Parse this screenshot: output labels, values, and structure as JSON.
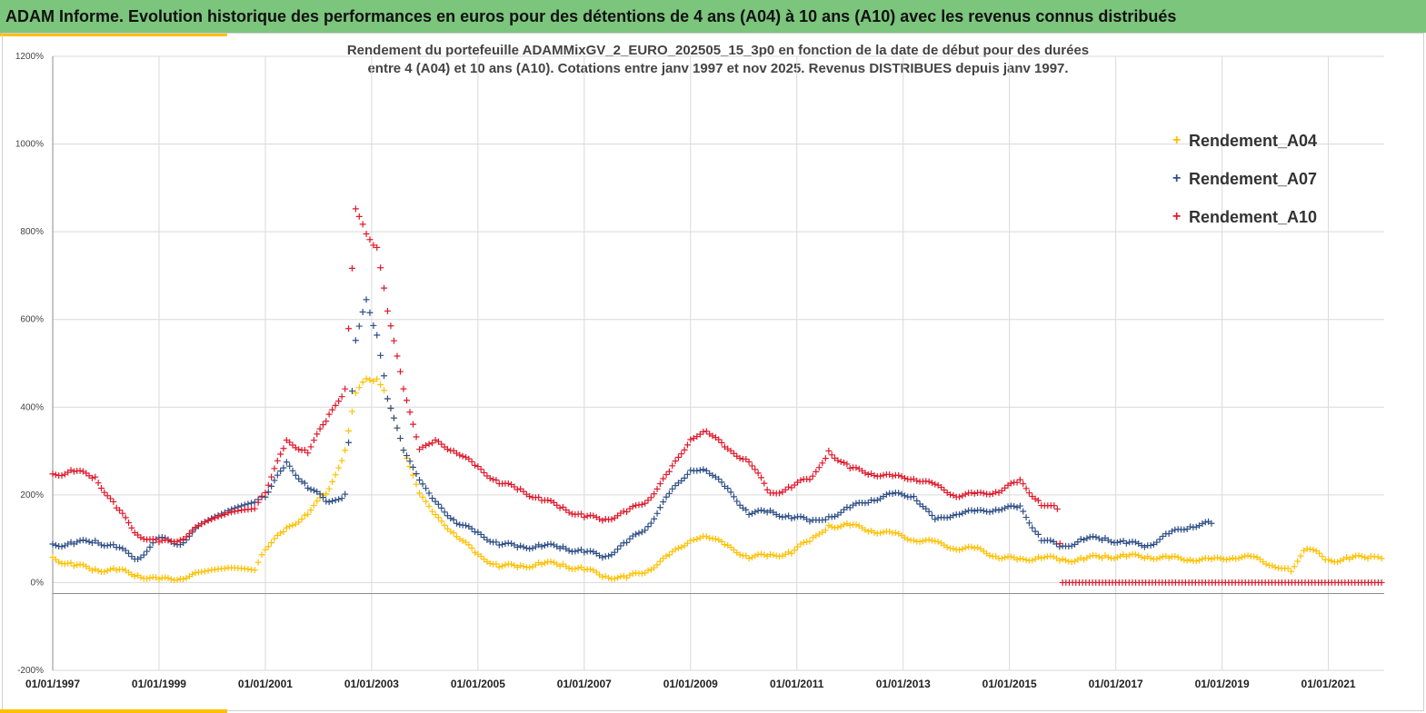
{
  "header": {
    "title": "ADAM Informe. Evolution historique des performances en euros pour des détentions de 4 ans (A04) à 10 ans (A10) avec les revenus connus distribués"
  },
  "colors": {
    "banner": "#7cc57d",
    "accent": "#ffc000",
    "A04": "#ffc000",
    "A07": "#2f4f86",
    "A10": "#e0182a"
  },
  "chart_data": {
    "type": "scatter",
    "title_line1": "Rendement du portefeuille ADAMMixGV_2_EURO_202505_15_3p0 en fonction de la date de début pour des durées",
    "title_line2": "entre 4 (A04) et 10 ans (A10). Cotations entre janv 1997 et nov 2025. Revenus DISTRIBUES depuis janv 1997.",
    "xlabel": "",
    "ylabel": "",
    "xlim": [
      1997.0,
      2022.05
    ],
    "ylim": [
      -200,
      1200
    ],
    "marker": "+",
    "y_ticks": [
      "1200%",
      "1000%",
      "800%",
      "600%",
      "400%",
      "200%",
      "0%",
      "-200%"
    ],
    "y_tick_values": [
      1200,
      1000,
      800,
      600,
      400,
      200,
      0,
      -200
    ],
    "x_ticks": [
      "01/01/1997",
      "01/01/1999",
      "01/01/2001",
      "01/01/2003",
      "01/01/2005",
      "01/01/2007",
      "01/01/2009",
      "01/01/2011",
      "01/01/2013",
      "01/01/2015",
      "01/01/2017",
      "01/01/2019",
      "01/01/2021"
    ],
    "x_tick_values": [
      1997,
      1999,
      2001,
      2003,
      2005,
      2007,
      2009,
      2011,
      2013,
      2015,
      2017,
      2019,
      2021
    ],
    "legend": [
      "Rendement_A04",
      "Rendement_A07",
      "Rendement_A10"
    ],
    "legend_position": "top-right",
    "series": [
      {
        "name": "Rendement_A04",
        "color": "#ffc000",
        "x": [
          1997.0,
          1997.4,
          1997.8,
          1998.2,
          1998.6,
          1999.0,
          1999.4,
          1999.8,
          2000.3,
          2000.8,
          2001.0,
          2001.4,
          2001.8,
          2002.2,
          2002.5,
          2002.7,
          2002.9,
          2003.1,
          2003.3,
          2003.6,
          2003.9,
          2004.2,
          2004.6,
          2005.0,
          2005.4,
          2005.8,
          2006.2,
          2006.6,
          2007.0,
          2007.4,
          2007.8,
          2008.2,
          2008.6,
          2009.0,
          2009.3,
          2009.7,
          2010.1,
          2010.5,
          2010.9,
          2011.3,
          2011.6,
          2012.0,
          2012.4,
          2012.8,
          2013.2,
          2013.6,
          2014.0,
          2014.4,
          2014.8,
          2015.2,
          2015.6,
          2016.0,
          2016.4,
          2016.8,
          2017.2,
          2017.6,
          2018.0,
          2018.4,
          2018.8,
          2019.2,
          2019.6,
          2020.0,
          2020.3,
          2020.6,
          2021.0,
          2021.4,
          2021.8,
          2022.0
        ],
        "y": [
          55,
          40,
          30,
          28,
          18,
          5,
          12,
          20,
          30,
          25,
          80,
          120,
          160,
          210,
          300,
          430,
          470,
          460,
          420,
          300,
          200,
          150,
          110,
          60,
          40,
          35,
          45,
          40,
          30,
          15,
          10,
          30,
          60,
          100,
          110,
          80,
          60,
          60,
          70,
          100,
          130,
          130,
          120,
          110,
          100,
          90,
          80,
          75,
          60,
          50,
          60,
          50,
          55,
          60,
          60,
          60,
          55,
          55,
          50,
          60,
          55,
          40,
          30,
          80,
          50,
          55,
          60,
          55
        ]
      },
      {
        "name": "Rendement_A07",
        "color": "#2f4f86",
        "x": [
          1997.0,
          1997.4,
          1997.8,
          1998.2,
          1998.6,
          1999.0,
          1999.4,
          1999.8,
          2000.3,
          2000.8,
          2001.0,
          2001.4,
          2001.8,
          2002.2,
          2002.5,
          2002.7,
          2002.9,
          2003.1,
          2003.3,
          2003.6,
          2003.9,
          2004.2,
          2004.6,
          2005.0,
          2005.4,
          2005.8,
          2006.2,
          2006.6,
          2007.0,
          2007.4,
          2007.8,
          2008.2,
          2008.6,
          2009.0,
          2009.3,
          2009.7,
          2010.1,
          2010.5,
          2010.9,
          2011.3,
          2011.6,
          2012.0,
          2012.4,
          2012.8,
          2013.2,
          2013.6,
          2014.0,
          2014.4,
          2014.8,
          2015.2,
          2015.6,
          2016.0,
          2016.4,
          2016.8,
          2017.2,
          2017.6,
          2018.0,
          2018.4,
          2018.8
        ],
        "y": [
          85,
          90,
          95,
          80,
          55,
          100,
          90,
          130,
          160,
          180,
          200,
          270,
          220,
          180,
          200,
          550,
          650,
          560,
          420,
          300,
          230,
          180,
          140,
          110,
          90,
          80,
          85,
          80,
          70,
          60,
          90,
          130,
          200,
          260,
          260,
          210,
          160,
          160,
          150,
          140,
          150,
          170,
          190,
          200,
          200,
          140,
          160,
          160,
          170,
          170,
          100,
          80,
          100,
          100,
          90,
          85,
          110,
          130,
          135
        ]
      },
      {
        "name": "Rendement_A10",
        "color": "#e0182a",
        "x": [
          1997.0,
          1997.4,
          1997.8,
          1998.2,
          1998.6,
          1999.0,
          1999.4,
          1999.8,
          2000.3,
          2000.8,
          2001.0,
          2001.4,
          2001.8,
          2002.2,
          2002.5,
          2002.7,
          2002.9,
          2003.1,
          2003.3,
          2003.6,
          2003.9,
          2004.2,
          2004.6,
          2005.0,
          2005.4,
          2005.8,
          2006.2,
          2006.6,
          2007.0,
          2007.4,
          2007.8,
          2008.2,
          2008.6,
          2009.0,
          2009.3,
          2009.7,
          2010.1,
          2010.5,
          2010.9,
          2011.3,
          2011.6,
          2012.0,
          2012.4,
          2012.8,
          2013.2,
          2013.6,
          2014.0,
          2014.4,
          2014.8,
          2015.2,
          2015.6,
          2015.9,
          2016.0,
          2016.5,
          2017.0,
          2017.5,
          2018.0,
          2018.5,
          2019.0,
          2019.5,
          2020.0,
          2020.5,
          2021.0,
          2021.5,
          2022.0
        ],
        "y": [
          245,
          255,
          240,
          170,
          110,
          90,
          100,
          130,
          155,
          165,
          210,
          320,
          300,
          380,
          440,
          850,
          800,
          760,
          620,
          440,
          300,
          320,
          300,
          260,
          230,
          210,
          190,
          170,
          150,
          145,
          160,
          190,
          250,
          330,
          350,
          300,
          280,
          200,
          220,
          240,
          300,
          260,
          250,
          240,
          240,
          220,
          200,
          200,
          210,
          230,
          180,
          170,
          0,
          0,
          0,
          0,
          0,
          0,
          0,
          0,
          0,
          0,
          0,
          0,
          0
        ]
      }
    ]
  }
}
